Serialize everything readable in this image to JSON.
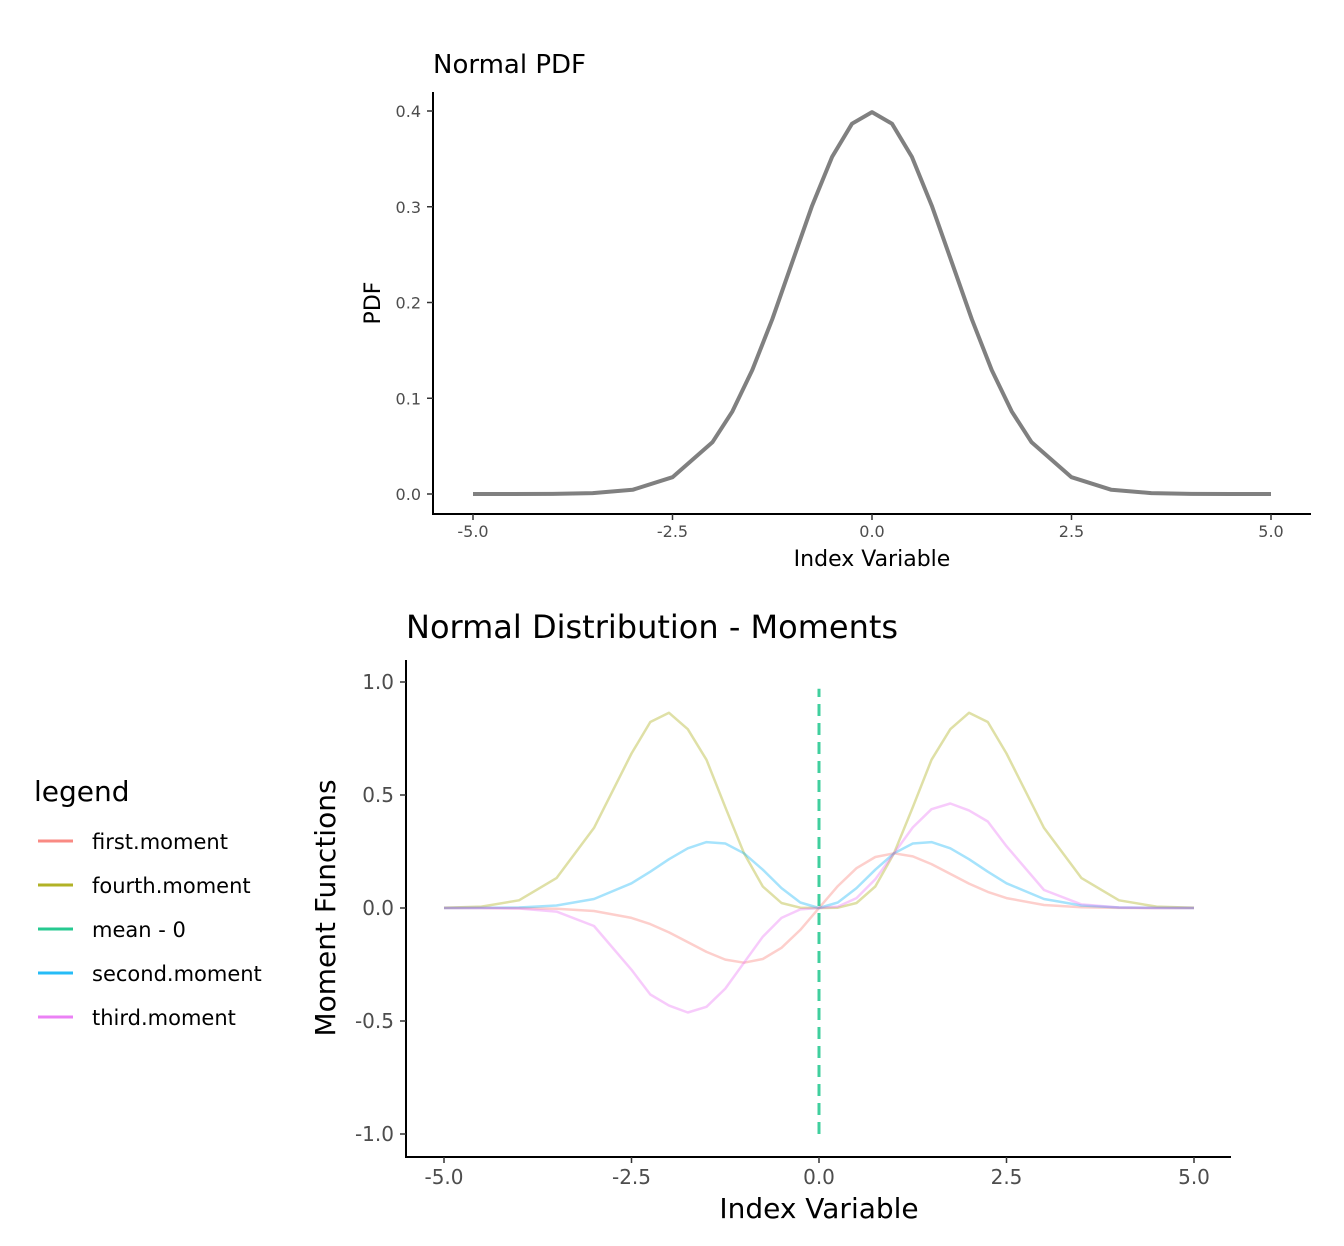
{
  "chart_data": [
    {
      "type": "line",
      "title": "Normal PDF",
      "xlabel": "Index Variable",
      "ylabel": "PDF",
      "xlim": [
        -5,
        5
      ],
      "ylim": [
        0,
        0.4
      ],
      "xticks": [
        "-5.0",
        "-2.5",
        "0.0",
        "2.5",
        "5.0"
      ],
      "yticks": [
        "0.0",
        "0.1",
        "0.2",
        "0.3",
        "0.4"
      ],
      "grid": false,
      "series": [
        {
          "color": "#808080",
          "x": [
            -5,
            -4.5,
            -4,
            -3.5,
            -3,
            -2.5,
            -2,
            -1.75,
            -1.5,
            -1.25,
            -1,
            -0.75,
            -0.5,
            -0.25,
            0,
            0.25,
            0.5,
            0.75,
            1,
            1.25,
            1.5,
            1.75,
            2,
            2.5,
            3,
            3.5,
            4,
            4.5,
            5
          ],
          "y": [
            0.0,
            0.0,
            0.0001,
            0.0009,
            0.0044,
            0.0175,
            0.054,
            0.0863,
            0.1295,
            0.1826,
            0.242,
            0.3011,
            0.3521,
            0.3867,
            0.3989,
            0.3867,
            0.3521,
            0.3011,
            0.242,
            0.1826,
            0.1295,
            0.0863,
            0.054,
            0.0175,
            0.0044,
            0.0009,
            0.0001,
            0.0,
            0.0
          ]
        }
      ]
    },
    {
      "type": "line",
      "title": "Normal Distribution - Moments",
      "xlabel": "Index Variable",
      "ylabel": "Moment Functions",
      "xlim": [
        -5,
        5
      ],
      "ylim": [
        -1,
        1
      ],
      "xticks": [
        "-5.0",
        "-2.5",
        "0.0",
        "2.5",
        "5.0"
      ],
      "yticks": [
        "-1.0",
        "-0.5",
        "0.0",
        "0.5",
        "1.0"
      ],
      "grid": false,
      "legend": {
        "title": "legend",
        "position": "left"
      },
      "x": [
        -5,
        -4.5,
        -4,
        -3.5,
        -3,
        -2.5,
        -2.25,
        -2,
        -1.75,
        -1.5,
        -1.25,
        -1,
        -0.75,
        -0.5,
        -0.25,
        0,
        0.25,
        0.5,
        0.75,
        1,
        1.25,
        1.5,
        1.75,
        2,
        2.25,
        2.5,
        3,
        3.5,
        4,
        4.5,
        5
      ],
      "series": [
        {
          "name": "first.moment",
          "color": "#F8766D",
          "y": [
            0.0,
            -0.0001,
            -0.0005,
            -0.0031,
            -0.0133,
            -0.0438,
            -0.0713,
            -0.108,
            -0.151,
            -0.1943,
            -0.2283,
            -0.242,
            -0.2258,
            -0.176,
            -0.0967,
            0.0,
            0.0967,
            0.176,
            0.2258,
            0.242,
            0.2283,
            0.1943,
            0.151,
            0.108,
            0.0713,
            0.0438,
            0.0133,
            0.0031,
            0.0005,
            0.0001,
            0.0
          ]
        },
        {
          "name": "fourth.moment",
          "color": "#A3A500",
          "y": [
            0.0009,
            0.0064,
            0.0342,
            0.1324,
            0.3545,
            0.6838,
            0.8232,
            0.8638,
            0.791,
            0.6556,
            0.4458,
            0.242,
            0.0953,
            0.022,
            0.0015,
            0.0,
            0.0015,
            0.022,
            0.0953,
            0.242,
            0.4458,
            0.6556,
            0.791,
            0.8638,
            0.8232,
            0.6838,
            0.3545,
            0.1324,
            0.0342,
            0.0064,
            0.0009
          ]
        },
        {
          "name": "mean - 0",
          "color": "#00BF7D",
          "dashed": true,
          "x": [
            0,
            0
          ],
          "y": [
            -1,
            0.97
          ]
        },
        {
          "name": "second.moment",
          "color": "#00B0F6",
          "y": [
            0.0,
            0.0003,
            0.0021,
            0.0109,
            0.0399,
            0.1094,
            0.1604,
            0.216,
            0.2643,
            0.2914,
            0.2853,
            0.242,
            0.1694,
            0.088,
            0.0242,
            0.0,
            0.0242,
            0.088,
            0.1694,
            0.242,
            0.2853,
            0.2914,
            0.2643,
            0.216,
            0.1604,
            0.1094,
            0.0399,
            0.0109,
            0.0021,
            0.0003,
            0.0
          ]
        },
        {
          "name": "third.moment",
          "color": "#E76BF3",
          "y": [
            -0.0,
            -0.0002,
            -0.0021,
            -0.0159,
            -0.0798,
            -0.2735,
            -0.3827,
            -0.4319,
            -0.4625,
            -0.4371,
            -0.3566,
            -0.242,
            -0.1271,
            -0.044,
            -0.006,
            0.0,
            0.006,
            0.044,
            0.1271,
            0.242,
            0.3566,
            0.4371,
            0.4625,
            0.4319,
            0.3827,
            0.2735,
            0.0798,
            0.0159,
            0.0021,
            0.0002,
            0.0
          ]
        }
      ]
    }
  ]
}
